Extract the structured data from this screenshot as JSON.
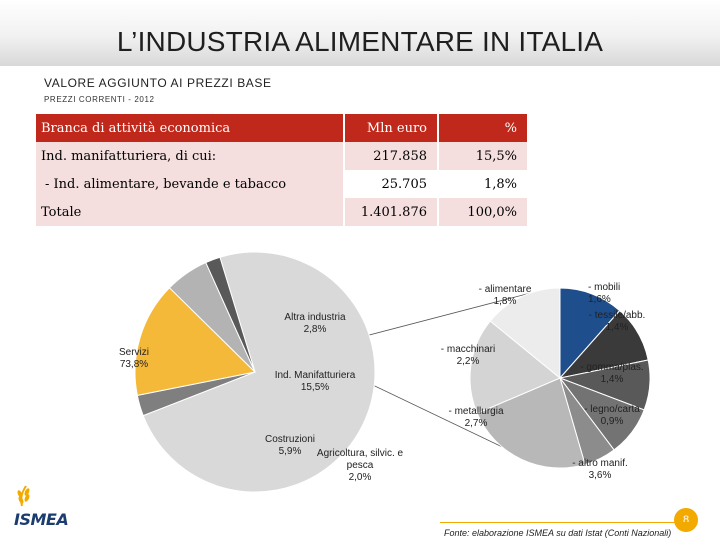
{
  "slide": {
    "title": "L’INDUSTRIA ALIMENTARE IN ITALIA",
    "subtitle": "VALORE AGGIUNTO AI PREZZI BASE",
    "subtitle2": "PREZZI CORRENTI - 2012",
    "page_number": "8",
    "source": "Fonte: elaborazione ISMEA su dati Istat (Conti Nazionali)"
  },
  "logo": {
    "name": "ISMEA"
  },
  "table": {
    "headers": [
      "Branca di attività economica",
      "Mln euro",
      "%"
    ],
    "rows": [
      [
        "Ind. manifatturiera, di cui:",
        "217.858",
        "15,5%"
      ],
      [
        "- Ind. alimentare, bevande e tabacco",
        "25.705",
        "1,8%"
      ],
      [
        "Totale",
        "1.401.876",
        "100,0%"
      ]
    ]
  },
  "chart_data": [
    {
      "type": "pie",
      "slices": [
        {
          "label": "Servizi",
          "value_label": "73,8%",
          "value": 73.8
        },
        {
          "label": "Altra industria",
          "value_label": "2,8%",
          "value": 2.8
        },
        {
          "label": "Ind. Manifatturiera",
          "value_label": "15,5%",
          "value": 15.5
        },
        {
          "label": "Costruzioni",
          "value_label": "5,9%",
          "value": 5.9
        },
        {
          "label": "Agricoltura, silvic. e pesca",
          "value_label": "2,0%",
          "value": 2.0
        }
      ],
      "colors": [
        "#d9d9d9",
        "#7f7f7f",
        "#f5b93a",
        "#b3b3b3",
        "#595959"
      ]
    },
    {
      "type": "pie",
      "slices": [
        {
          "label": "- alimentare",
          "value_label": "1,8%",
          "value": 1.8
        },
        {
          "label": "- mobili",
          "value_label": "1,6%",
          "value": 1.6
        },
        {
          "label": "- tessile/abb.",
          "value_label": "1,4%",
          "value": 1.4
        },
        {
          "label": "- gomma/plas.",
          "value_label": "1,4%",
          "value": 1.4
        },
        {
          "label": "- legno/carta",
          "value_label": "0,9%",
          "value": 0.9
        },
        {
          "label": "- altro manif.",
          "value_label": "3,6%",
          "value": 3.6
        },
        {
          "label": "- metallurgia",
          "value_label": "2,7%",
          "value": 2.7
        },
        {
          "label": "- macchinari",
          "value_label": "2,2%",
          "value": 2.2
        }
      ],
      "colors": [
        "#1f4e8c",
        "#3a3a3a",
        "#595959",
        "#737373",
        "#8c8c8c",
        "#b8b8b8",
        "#d4d4d4",
        "#ececec"
      ]
    }
  ]
}
